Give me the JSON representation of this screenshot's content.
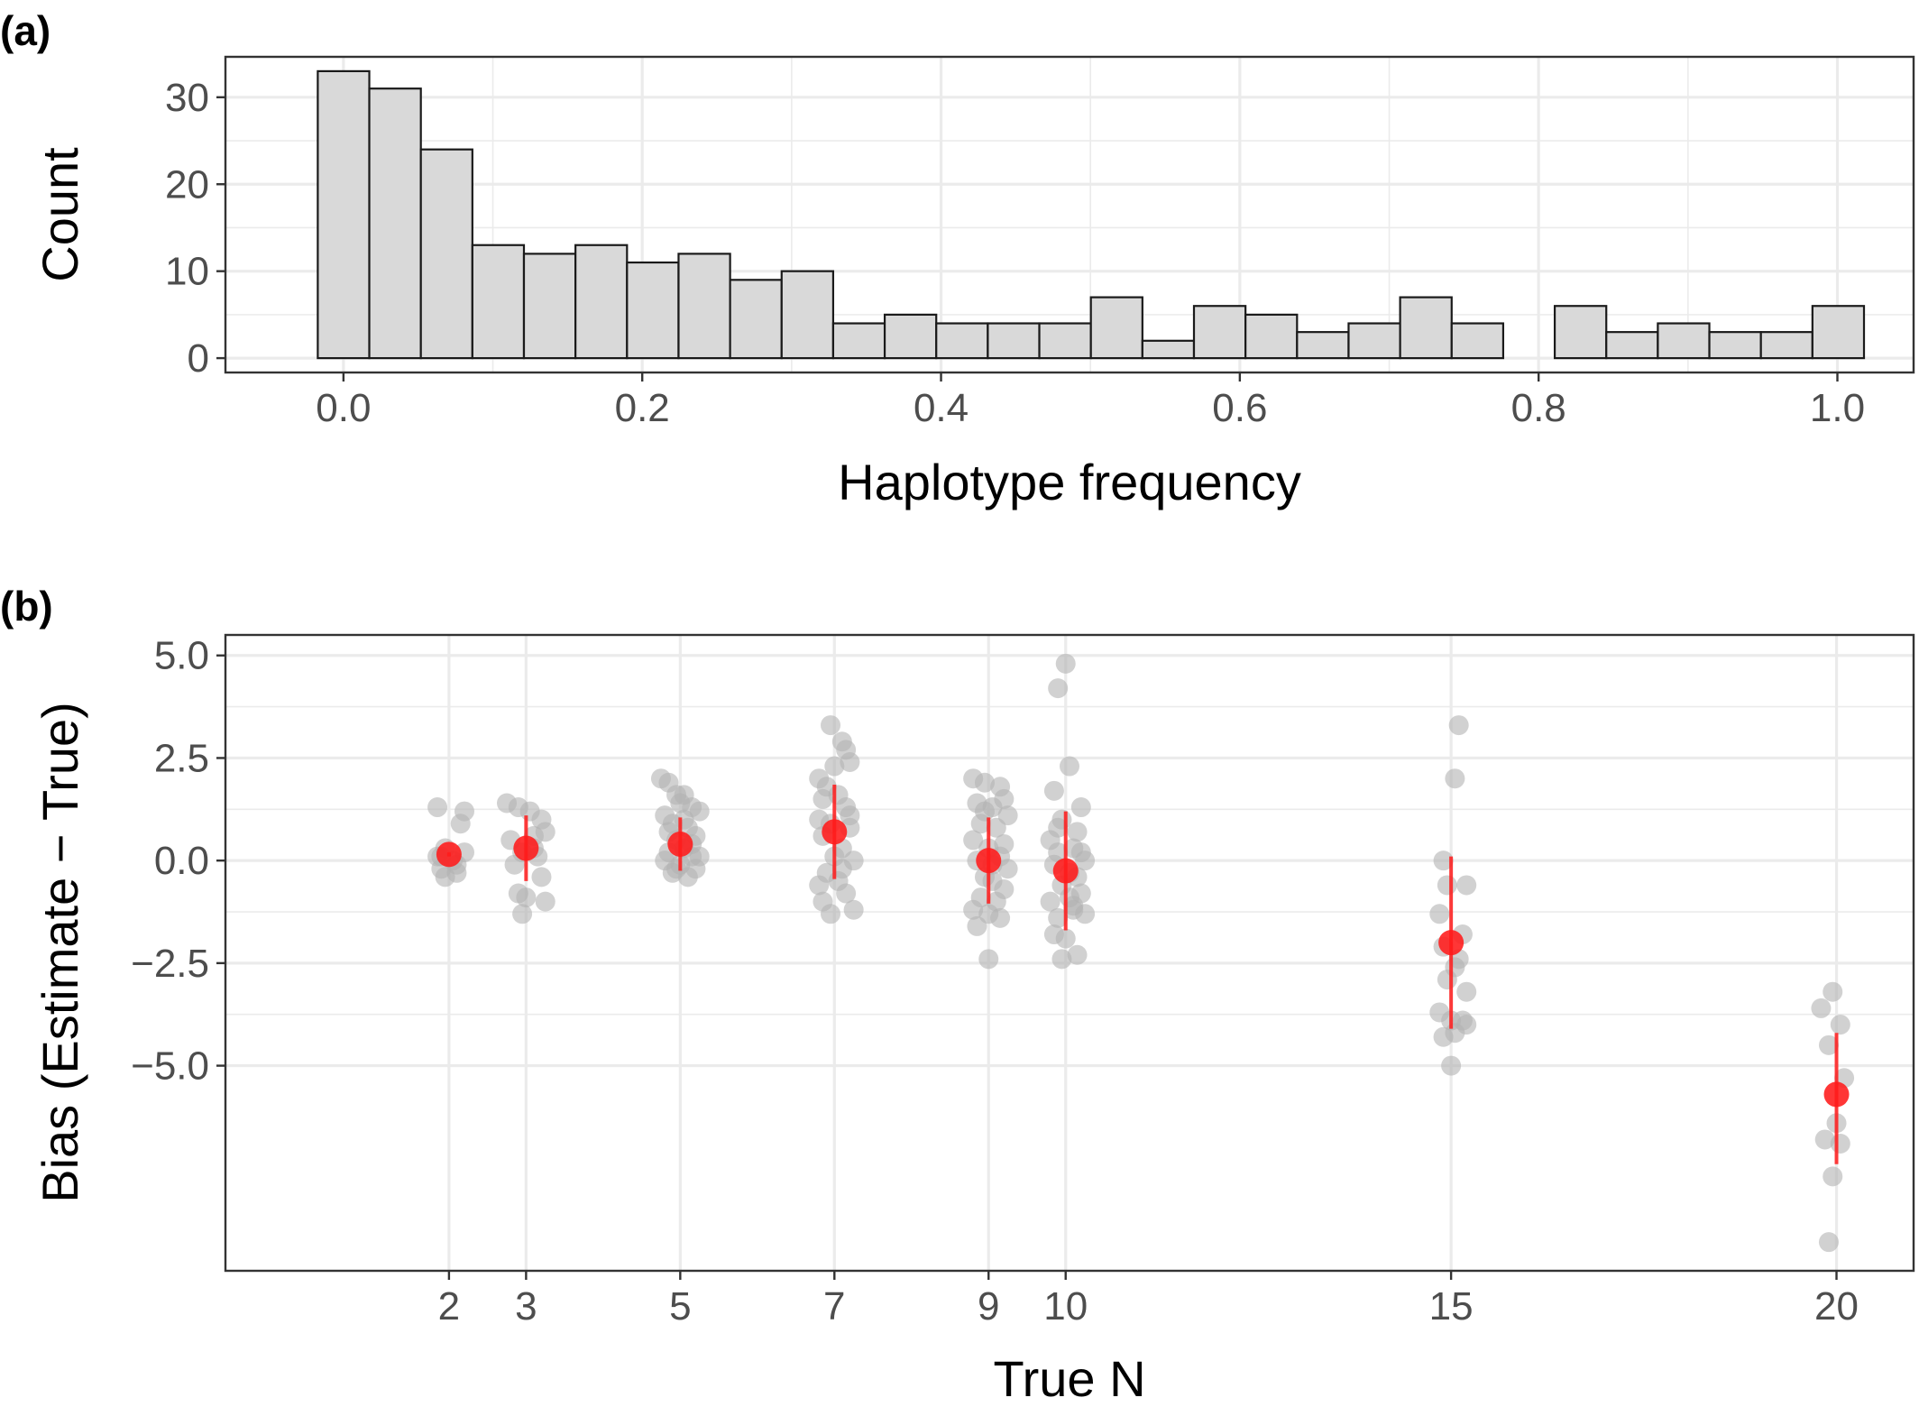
{
  "chart_data": [
    {
      "panel_label": "(a)",
      "type": "bar",
      "subtype": "histogram",
      "xlabel": "Haplotype frequency",
      "ylabel": "Count",
      "bin_width": 0.0345,
      "bin_starts": [
        -0.0172,
        0.0173,
        0.0518,
        0.0863,
        0.1208,
        0.1553,
        0.1898,
        0.2243,
        0.2588,
        0.2933,
        0.3278,
        0.3623,
        0.3968,
        0.4313,
        0.4658,
        0.5003,
        0.5348,
        0.5693,
        0.6038,
        0.6383,
        0.6728,
        0.7073,
        0.7418,
        0.7763,
        0.8108,
        0.8453,
        0.8798,
        0.9143,
        0.9488,
        0.9833
      ],
      "values": [
        33,
        31,
        24,
        13,
        12,
        13,
        11,
        12,
        9,
        10,
        4,
        5,
        4,
        4,
        4,
        7,
        2,
        6,
        5,
        3,
        4,
        7,
        4,
        0,
        6,
        3,
        4,
        3,
        3,
        6
      ],
      "xlim": [
        -0.079,
        1.051
      ],
      "ylim": [
        -1.65,
        34.65
      ],
      "xticks": [
        0.0,
        0.2,
        0.4,
        0.6,
        0.8,
        1.0
      ],
      "xtick_labels": [
        "0.0",
        "0.2",
        "0.4",
        "0.6",
        "0.8",
        "1.0"
      ],
      "yticks": [
        0,
        10,
        20,
        30
      ],
      "ytick_labels": [
        "0",
        "10",
        "20",
        "30"
      ],
      "grid": true,
      "colors": {
        "bar_fill": "#d9d9d9",
        "bar_stroke": "#1a1a1a",
        "grid": "#ebebeb",
        "panel_border": "#333333"
      }
    },
    {
      "panel_label": "(b)",
      "type": "scatter",
      "xlabel": "True N",
      "ylabel": "Bias (Estimate − True)",
      "xlim": [
        -0.9,
        21.0
      ],
      "ylim": [
        -10.0,
        5.5
      ],
      "xticks": [
        2,
        3,
        5,
        7,
        9,
        10,
        15,
        20
      ],
      "xtick_labels": [
        "2",
        "3",
        "5",
        "7",
        "9",
        "10",
        "15",
        "20"
      ],
      "yticks": [
        5.0,
        2.5,
        0.0,
        -2.5,
        -5.0
      ],
      "ytick_labels": [
        "5.0",
        "2.5",
        "0.0",
        "−2.5",
        "−5.0"
      ],
      "grid": true,
      "colors": {
        "points": "#b3b3b3",
        "summary": "#ff1a1a",
        "grid": "#ebebeb",
        "panel_border": "#333333"
      },
      "summary": [
        {
          "n": 2,
          "mean": 0.15,
          "lower": 0.1,
          "upper": 0.2
        },
        {
          "n": 3,
          "mean": 0.3,
          "lower": -0.5,
          "upper": 1.1
        },
        {
          "n": 5,
          "mean": 0.4,
          "lower": -0.25,
          "upper": 1.05
        },
        {
          "n": 7,
          "mean": 0.7,
          "lower": -0.45,
          "upper": 1.85
        },
        {
          "n": 9,
          "mean": 0.0,
          "lower": -1.05,
          "upper": 1.05
        },
        {
          "n": 10,
          "mean": -0.25,
          "lower": -1.7,
          "upper": 1.2
        },
        {
          "n": 15,
          "mean": -2.0,
          "lower": -4.1,
          "upper": 0.1
        },
        {
          "n": 20,
          "mean": -5.7,
          "lower": -7.4,
          "upper": -4.2
        }
      ],
      "points": [
        {
          "n": 2,
          "x": [
            1.85,
            2.2,
            1.95,
            2.15,
            1.9,
            2.05,
            1.9,
            2.1,
            1.95,
            2.2,
            1.85,
            2.1
          ],
          "y": [
            1.3,
            1.2,
            0.3,
            0.9,
            0.1,
            0.0,
            -0.2,
            -0.3,
            -0.4,
            0.2,
            0.1,
            -0.1
          ]
        },
        {
          "n": 3,
          "x": [
            2.75,
            2.9,
            3.05,
            3.2,
            3.25,
            2.8,
            3.1,
            2.95,
            2.85,
            3.15,
            3.2,
            2.9,
            3.0,
            2.95,
            3.1,
            3.25
          ],
          "y": [
            1.4,
            1.3,
            1.2,
            1.0,
            0.7,
            0.5,
            0.3,
            0.2,
            -0.1,
            0.1,
            -0.4,
            -0.8,
            -0.9,
            -1.3,
            0.6,
            -1.0
          ]
        },
        {
          "n": 5,
          "x": [
            4.75,
            4.85,
            4.95,
            5.05,
            5.15,
            5.25,
            4.8,
            4.9,
            5.1,
            5.2,
            4.95,
            5.05,
            4.85,
            5.15,
            4.8,
            5.0,
            5.2,
            4.9,
            5.1,
            5.0,
            4.85,
            5.15,
            5.05,
            4.95,
            5.25
          ],
          "y": [
            2.0,
            1.9,
            1.6,
            1.6,
            1.3,
            1.2,
            1.1,
            0.9,
            0.8,
            0.6,
            0.5,
            0.3,
            0.2,
            0.1,
            0.0,
            -0.1,
            -0.2,
            -0.3,
            -0.4,
            1.4,
            0.7,
            0.4,
            1.0,
            -0.2,
            0.1
          ]
        },
        {
          "n": 7,
          "x": [
            6.95,
            7.1,
            7.15,
            7.2,
            7.0,
            6.8,
            6.9,
            7.05,
            6.85,
            7.15,
            6.8,
            6.95,
            7.2,
            6.85,
            7.1,
            7.0,
            7.25,
            6.9,
            7.05,
            7.15,
            6.85,
            7.25,
            6.95,
            7.1,
            6.8,
            7.2
          ],
          "y": [
            3.3,
            2.9,
            2.7,
            2.4,
            2.3,
            2.0,
            1.8,
            1.6,
            1.5,
            1.3,
            1.0,
            0.9,
            0.8,
            0.6,
            0.3,
            0.1,
            0.0,
            -0.3,
            -0.5,
            -0.8,
            -1.0,
            -1.2,
            -1.3,
            -0.2,
            -0.6,
            1.1
          ]
        },
        {
          "n": 9,
          "x": [
            8.8,
            8.95,
            9.15,
            9.2,
            8.85,
            9.05,
            9.25,
            8.9,
            9.1,
            8.8,
            9.0,
            9.15,
            8.85,
            9.25,
            8.95,
            9.05,
            9.2,
            8.9,
            9.1,
            8.8,
            9.0,
            9.15,
            8.85,
            9.0,
            9.2,
            8.95,
            9.05
          ],
          "y": [
            2.0,
            1.9,
            1.8,
            1.5,
            1.4,
            1.3,
            1.1,
            0.9,
            0.8,
            0.5,
            0.3,
            0.1,
            0.0,
            -0.2,
            -0.4,
            -0.5,
            -0.7,
            -0.9,
            -1.0,
            -1.2,
            -1.3,
            -1.4,
            -1.6,
            -2.4,
            0.4,
            1.2,
            -0.1
          ]
        },
        {
          "n": 10,
          "x": [
            10.0,
            9.9,
            10.05,
            9.85,
            10.2,
            9.95,
            10.15,
            9.8,
            10.1,
            9.9,
            10.25,
            9.85,
            10.05,
            10.15,
            9.95,
            10.2,
            9.8,
            10.1,
            9.9,
            10.25,
            9.85,
            10.0,
            10.15,
            9.95,
            10.05,
            10.2,
            9.9,
            10.1
          ],
          "y": [
            4.8,
            4.2,
            2.3,
            1.7,
            1.3,
            1.0,
            0.7,
            0.5,
            0.3,
            0.2,
            0.0,
            -0.1,
            -0.3,
            -0.4,
            -0.6,
            -0.8,
            -1.0,
            -1.2,
            -1.4,
            -1.3,
            -1.8,
            -1.9,
            -2.3,
            -2.4,
            -0.9,
            0.2,
            0.8,
            -1.1
          ]
        },
        {
          "n": 15,
          "x": [
            15.1,
            15.05,
            14.9,
            15.2,
            14.95,
            14.85,
            15.15,
            14.9,
            15.1,
            15.05,
            14.95,
            15.2,
            14.85,
            15.0,
            15.15,
            14.9,
            15.05,
            15.2,
            15.0
          ],
          "y": [
            3.3,
            2.0,
            0.0,
            -0.6,
            -0.6,
            -1.3,
            -1.8,
            -2.1,
            -2.4,
            -2.6,
            -2.9,
            -3.2,
            -3.7,
            -3.9,
            -3.9,
            -4.3,
            -4.2,
            -4.0,
            -5.0
          ]
        },
        {
          "n": 20,
          "x": [
            19.95,
            19.8,
            20.05,
            19.9,
            20.1,
            20.0,
            19.85,
            20.05,
            19.95,
            19.9
          ],
          "y": [
            -3.2,
            -3.6,
            -4.0,
            -4.5,
            -5.3,
            -6.4,
            -6.8,
            -6.9,
            -7.7,
            -9.3
          ]
        }
      ]
    }
  ]
}
